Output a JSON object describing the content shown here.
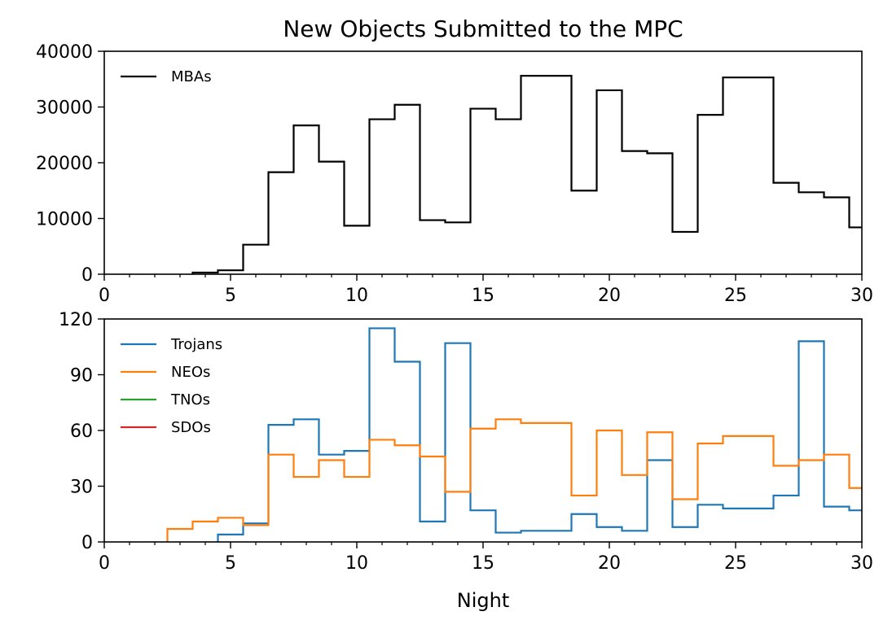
{
  "figure": {
    "title": "New Objects Submitted to the MPC"
  },
  "chart_data": [
    {
      "type": "line",
      "drawstyle": "steps-mid",
      "title": "New Objects Submitted to the MPC",
      "xlabel": "",
      "ylabel": "",
      "xlim": [
        0,
        30
      ],
      "ylim": [
        0,
        40000
      ],
      "x_major_ticks": [
        0,
        5,
        10,
        15,
        20,
        25,
        30
      ],
      "x_tick_labels": [
        "0",
        "5",
        "10",
        "15",
        "20",
        "25",
        "30"
      ],
      "x_minor_step": 1,
      "y_major_ticks": [
        0,
        10000,
        20000,
        30000,
        40000
      ],
      "y_tick_labels": [
        "0",
        "10000",
        "20000",
        "30000",
        "40000"
      ],
      "grid": false,
      "legend_position": "upper-left",
      "legend": [
        "MBAs"
      ],
      "series": [
        {
          "name": "MBAs",
          "color": "#000000",
          "x": [
            4,
            5,
            6,
            7,
            8,
            9,
            10,
            11,
            12,
            13,
            14,
            15,
            16,
            17,
            18,
            19,
            20,
            21,
            22,
            23,
            24,
            25,
            26,
            27,
            28,
            29,
            30
          ],
          "y": [
            300,
            700,
            5300,
            18300,
            26700,
            20200,
            8700,
            27800,
            30400,
            9700,
            9300,
            29700,
            27800,
            35600,
            35600,
            15000,
            33000,
            22100,
            21700,
            7600,
            28600,
            35300,
            35300,
            16400,
            14700,
            13800,
            8400
          ]
        }
      ]
    },
    {
      "type": "line",
      "drawstyle": "steps-mid",
      "title": "",
      "xlabel": "Night",
      "ylabel": "",
      "xlim": [
        0,
        30
      ],
      "ylim": [
        0,
        120
      ],
      "x_major_ticks": [
        0,
        5,
        10,
        15,
        20,
        25,
        30
      ],
      "x_tick_labels": [
        "0",
        "5",
        "10",
        "15",
        "20",
        "25",
        "30"
      ],
      "x_minor_step": 1,
      "y_major_ticks": [
        0,
        30,
        60,
        90,
        120
      ],
      "y_tick_labels": [
        "0",
        "30",
        "60",
        "90",
        "120"
      ],
      "grid": false,
      "legend_position": "upper-left",
      "legend": [
        "Trojans",
        "NEOs",
        "TNOs",
        "SDOs"
      ],
      "series": [
        {
          "name": "Trojans",
          "color": "#1f77b4",
          "x": [
            5,
            6,
            7,
            8,
            9,
            10,
            11,
            12,
            13,
            14,
            15,
            16,
            17,
            18,
            19,
            20,
            21,
            22,
            23,
            24,
            25,
            26,
            27,
            28,
            29,
            30
          ],
          "y": [
            4,
            10,
            63,
            66,
            47,
            49,
            115,
            97,
            11,
            107,
            17,
            5,
            6,
            6,
            15,
            8,
            6,
            44,
            8,
            20,
            18,
            18,
            25,
            108,
            19,
            17
          ]
        },
        {
          "name": "NEOs",
          "color": "#ff7f0e",
          "x": [
            3,
            4,
            5,
            6,
            7,
            8,
            9,
            10,
            11,
            12,
            13,
            14,
            15,
            16,
            17,
            18,
            19,
            20,
            21,
            22,
            23,
            24,
            25,
            26,
            27,
            28,
            29,
            30
          ],
          "y": [
            7,
            11,
            13,
            9,
            47,
            35,
            44,
            35,
            55,
            52,
            46,
            27,
            61,
            66,
            64,
            64,
            25,
            60,
            36,
            59,
            23,
            53,
            57,
            57,
            41,
            44,
            47,
            29
          ]
        },
        {
          "name": "TNOs",
          "color": "#2ca02c",
          "x": [],
          "y": []
        },
        {
          "name": "SDOs",
          "color": "#d62728",
          "x": [],
          "y": []
        }
      ]
    }
  ]
}
